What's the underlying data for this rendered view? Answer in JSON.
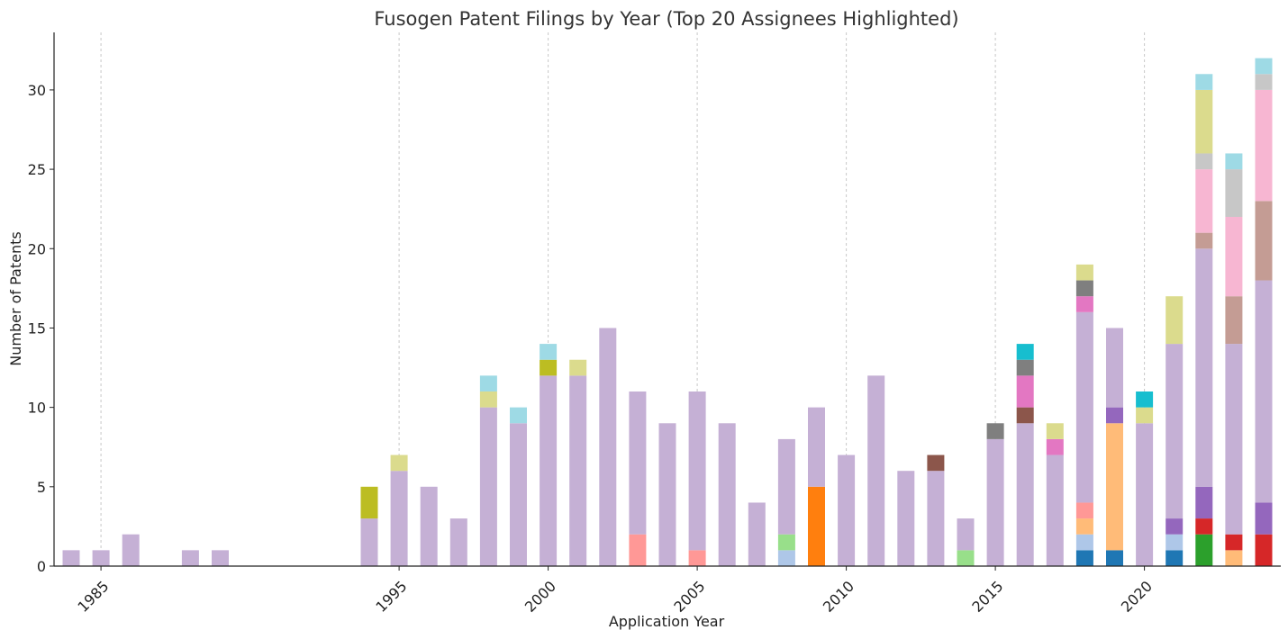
{
  "chart_data": {
    "type": "bar",
    "stacked": true,
    "title": "Fusogen Patent Filings by Year (Top 20 Assignees Highlighted)",
    "xlabel": "Application Year",
    "ylabel": "Number of Patents",
    "xlim": [
      1983,
      2024
    ],
    "ylim": [
      0,
      33
    ],
    "xticks": [
      1985,
      1995,
      2000,
      2005,
      2010,
      2015,
      2020
    ],
    "yticks": [
      0,
      5,
      10,
      15,
      20,
      25,
      30
    ],
    "grid": "vertical-dashed",
    "legend": "none",
    "colors": {
      "other": "#c5b0d5",
      "blue": "#1f77b4",
      "lightblue": "#aec7e8",
      "orange": "#ff7f0e",
      "lightorange": "#ffbb78",
      "green": "#2ca02c",
      "lightgreen": "#98df8a",
      "red": "#d62728",
      "salmon": "#ff9896",
      "purple": "#9467bd",
      "brown": "#8c564b",
      "lightbrown": "#c49c94",
      "pink": "#e377c2",
      "lightpink": "#f7b6d2",
      "gray": "#7f7f7f",
      "lightgray": "#c7c7c7",
      "olive": "#bcbd22",
      "khaki": "#dbdb8d",
      "cyan": "#17becf",
      "lightcyan": "#9edae5"
    },
    "bars": [
      {
        "year": 1984,
        "segments": [
          [
            "other",
            1
          ]
        ]
      },
      {
        "year": 1985,
        "segments": [
          [
            "other",
            1
          ]
        ]
      },
      {
        "year": 1986,
        "segments": [
          [
            "other",
            2
          ]
        ]
      },
      {
        "year": 1988,
        "segments": [
          [
            "other",
            1
          ]
        ]
      },
      {
        "year": 1989,
        "segments": [
          [
            "other",
            1
          ]
        ]
      },
      {
        "year": 1994,
        "segments": [
          [
            "other",
            3
          ],
          [
            "olive",
            2
          ]
        ]
      },
      {
        "year": 1995,
        "segments": [
          [
            "other",
            6
          ],
          [
            "khaki",
            1
          ]
        ]
      },
      {
        "year": 1996,
        "segments": [
          [
            "other",
            5
          ]
        ]
      },
      {
        "year": 1997,
        "segments": [
          [
            "other",
            3
          ]
        ]
      },
      {
        "year": 1998,
        "segments": [
          [
            "other",
            10
          ],
          [
            "khaki",
            1
          ],
          [
            "lightcyan",
            1
          ]
        ]
      },
      {
        "year": 1999,
        "segments": [
          [
            "other",
            9
          ],
          [
            "lightcyan",
            1
          ]
        ]
      },
      {
        "year": 2000,
        "segments": [
          [
            "other",
            12
          ],
          [
            "olive",
            1
          ],
          [
            "lightcyan",
            1
          ]
        ]
      },
      {
        "year": 2001,
        "segments": [
          [
            "other",
            12
          ],
          [
            "khaki",
            1
          ]
        ]
      },
      {
        "year": 2002,
        "segments": [
          [
            "other",
            15
          ]
        ]
      },
      {
        "year": 2003,
        "segments": [
          [
            "salmon",
            2
          ],
          [
            "other",
            9
          ]
        ]
      },
      {
        "year": 2004,
        "segments": [
          [
            "other",
            9
          ]
        ]
      },
      {
        "year": 2005,
        "segments": [
          [
            "salmon",
            1
          ],
          [
            "other",
            10
          ]
        ]
      },
      {
        "year": 2006,
        "segments": [
          [
            "other",
            9
          ]
        ]
      },
      {
        "year": 2007,
        "segments": [
          [
            "other",
            4
          ]
        ]
      },
      {
        "year": 2008,
        "segments": [
          [
            "lightblue",
            1
          ],
          [
            "lightgreen",
            1
          ],
          [
            "other",
            6
          ]
        ]
      },
      {
        "year": 2009,
        "segments": [
          [
            "orange",
            5
          ],
          [
            "other",
            5
          ]
        ]
      },
      {
        "year": 2010,
        "segments": [
          [
            "other",
            7
          ]
        ]
      },
      {
        "year": 2011,
        "segments": [
          [
            "other",
            12
          ]
        ]
      },
      {
        "year": 2012,
        "segments": [
          [
            "other",
            6
          ]
        ]
      },
      {
        "year": 2013,
        "segments": [
          [
            "other",
            6
          ],
          [
            "brown",
            1
          ]
        ]
      },
      {
        "year": 2014,
        "segments": [
          [
            "lightgreen",
            1
          ],
          [
            "other",
            2
          ]
        ]
      },
      {
        "year": 2015,
        "segments": [
          [
            "other",
            8
          ],
          [
            "gray",
            1
          ]
        ]
      },
      {
        "year": 2016,
        "segments": [
          [
            "other",
            9
          ],
          [
            "brown",
            1
          ],
          [
            "pink",
            2
          ],
          [
            "gray",
            1
          ],
          [
            "cyan",
            1
          ]
        ]
      },
      {
        "year": 2017,
        "segments": [
          [
            "other",
            7
          ],
          [
            "pink",
            1
          ],
          [
            "khaki",
            1
          ]
        ]
      },
      {
        "year": 2018,
        "segments": [
          [
            "blue",
            1
          ],
          [
            "lightblue",
            1
          ],
          [
            "lightorange",
            1
          ],
          [
            "salmon",
            1
          ],
          [
            "other",
            12
          ],
          [
            "pink",
            1
          ],
          [
            "gray",
            1
          ],
          [
            "khaki",
            1
          ]
        ]
      },
      {
        "year": 2019,
        "segments": [
          [
            "blue",
            1
          ],
          [
            "lightorange",
            8
          ],
          [
            "purple",
            1
          ],
          [
            "other",
            5
          ]
        ]
      },
      {
        "year": 2020,
        "segments": [
          [
            "other",
            9
          ],
          [
            "khaki",
            1
          ],
          [
            "cyan",
            1
          ]
        ]
      },
      {
        "year": 2021,
        "segments": [
          [
            "blue",
            1
          ],
          [
            "lightblue",
            1
          ],
          [
            "purple",
            1
          ],
          [
            "other",
            11
          ],
          [
            "khaki",
            3
          ]
        ]
      },
      {
        "year": 2022,
        "segments": [
          [
            "green",
            2
          ],
          [
            "red",
            1
          ],
          [
            "purple",
            2
          ],
          [
            "other",
            15
          ],
          [
            "lightbrown",
            1
          ],
          [
            "lightpink",
            4
          ],
          [
            "lightgray",
            1
          ],
          [
            "khaki",
            4
          ],
          [
            "lightcyan",
            1
          ]
        ]
      },
      {
        "year": 2023,
        "segments": [
          [
            "lightorange",
            1
          ],
          [
            "red",
            1
          ],
          [
            "other",
            12
          ],
          [
            "lightbrown",
            3
          ],
          [
            "lightpink",
            5
          ],
          [
            "lightgray",
            3
          ],
          [
            "lightcyan",
            1
          ]
        ]
      },
      {
        "year": 2024,
        "segments": [
          [
            "red",
            2
          ],
          [
            "purple",
            2
          ],
          [
            "other",
            14
          ],
          [
            "lightbrown",
            5
          ],
          [
            "lightpink",
            7
          ],
          [
            "lightgray",
            1
          ],
          [
            "lightcyan",
            1
          ]
        ]
      }
    ]
  }
}
